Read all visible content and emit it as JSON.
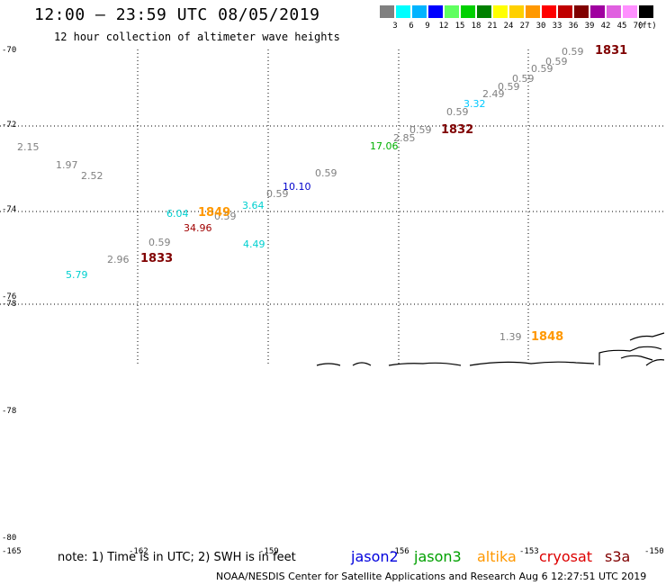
{
  "header": {
    "title": "12:00 – 23:59 UTC 08/05/2019",
    "subtitle": "12 hour collection of altimeter wave heights"
  },
  "color_scale": {
    "labels": [
      "3",
      "6",
      "9",
      "12",
      "15",
      "18",
      "21",
      "24",
      "27",
      "30",
      "33",
      "36",
      "39",
      "42",
      "45",
      "70",
      "(ft)"
    ],
    "colors": [
      "#808080",
      "#00ffff",
      "#00b4ff",
      "#0000ff",
      "#60ff60",
      "#00d000",
      "#008000",
      "#ffff00",
      "#ffd000",
      "#ff9800",
      "#ff0000",
      "#c00000",
      "#800000",
      "#a000a0",
      "#e060e0",
      "#ff90ff",
      "#000000"
    ]
  },
  "axes": {
    "lat_labels": [
      "-70",
      "-72",
      "-74",
      "-76",
      "-78",
      "-78",
      "-80"
    ],
    "lon_labels": [
      "-165",
      "-162",
      "-159",
      "-156",
      "-153",
      "-150"
    ]
  },
  "observations": [
    {
      "text": "0.59",
      "color": "#808080"
    },
    {
      "text": "0.59",
      "color": "#808080"
    },
    {
      "text": "0.59",
      "color": "#808080"
    },
    {
      "text": "0.59",
      "color": "#808080"
    },
    {
      "text": "0.59",
      "color": "#808080"
    },
    {
      "text": "2.49",
      "color": "#808080"
    },
    {
      "text": "3.32",
      "color": "#00c8ff"
    },
    {
      "text": "0.59",
      "color": "#808080"
    },
    {
      "text": "0.59",
      "color": "#808080"
    },
    {
      "text": "2.85",
      "color": "#808080"
    },
    {
      "text": "17.06",
      "color": "#00b000"
    },
    {
      "text": "2.15",
      "color": "#808080"
    },
    {
      "text": "1.97",
      "color": "#808080"
    },
    {
      "text": "2.52",
      "color": "#808080"
    },
    {
      "text": "0.59",
      "color": "#808080"
    },
    {
      "text": "10.10",
      "color": "#0000cc"
    },
    {
      "text": "0.59",
      "color": "#808080"
    },
    {
      "text": "3.64",
      "color": "#00d0d0"
    },
    {
      "text": "6.04",
      "color": "#00d0d0"
    },
    {
      "text": "0.59",
      "color": "#808080"
    },
    {
      "text": "34.96",
      "color": "#a00000"
    },
    {
      "text": "0.59",
      "color": "#808080"
    },
    {
      "text": "4.49",
      "color": "#00d0d0"
    },
    {
      "text": "2.96",
      "color": "#808080"
    },
    {
      "text": "5.79",
      "color": "#00d0d0"
    },
    {
      "text": "1.39",
      "color": "#808080"
    }
  ],
  "pass_times": [
    {
      "text": "1831",
      "color": "#800000"
    },
    {
      "text": "1832",
      "color": "#800000"
    },
    {
      "text": "1849",
      "color": "#ff9800"
    },
    {
      "text": "1833",
      "color": "#800000"
    },
    {
      "text": "1848",
      "color": "#ff9800"
    }
  ],
  "note": "note: 1) Time is in UTC; 2) SWH is in feet",
  "legend": [
    {
      "text": "jason2",
      "color": "#0000dd"
    },
    {
      "text": "jason3",
      "color": "#00a000"
    },
    {
      "text": "altika",
      "color": "#ff9800"
    },
    {
      "text": "cryosat",
      "color": "#dd0000"
    },
    {
      "text": "s3a",
      "color": "#800000"
    }
  ],
  "footer": "NOAA/NESDIS Center for Satellite Applications and Research    Aug  6 12:27:51 UTC 2019"
}
